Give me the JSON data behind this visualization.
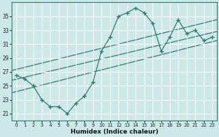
{
  "xlabel": "Humidex (Indice chaleur)",
  "bg_color": "#cce8e8",
  "grid_color": "#b0d8d8",
  "line_color": "#2d7a6e",
  "xlim": [
    -0.5,
    23.5
  ],
  "ylim": [
    20.0,
    37.0
  ],
  "yticks": [
    21,
    23,
    25,
    27,
    29,
    31,
    33,
    35
  ],
  "xticks": [
    0,
    1,
    2,
    3,
    4,
    5,
    6,
    7,
    8,
    9,
    10,
    11,
    12,
    13,
    14,
    15,
    16,
    17,
    18,
    19,
    20,
    21,
    22,
    23
  ],
  "main_x": [
    0,
    1,
    2,
    3,
    4,
    5,
    6,
    7,
    8,
    9,
    10,
    11,
    12,
    13,
    14,
    15,
    16,
    17,
    18,
    19,
    20,
    21,
    22,
    23
  ],
  "main_y": [
    26.5,
    26.0,
    25.0,
    23.0,
    22.0,
    22.0,
    21.0,
    22.5,
    23.5,
    25.5,
    30.0,
    32.0,
    35.0,
    35.5,
    36.2,
    35.5,
    34.0,
    30.0,
    32.0,
    34.5,
    32.5,
    33.0,
    31.5,
    32.0
  ],
  "trend1_x": [
    -0.5,
    23.5
  ],
  "trend1_y": [
    25.8,
    32.8
  ],
  "trend2_x": [
    -0.5,
    23.5
  ],
  "trend2_y": [
    24.0,
    31.5
  ],
  "trend3_x": [
    -0.5,
    23.5
  ],
  "trend3_y": [
    27.2,
    34.5
  ]
}
